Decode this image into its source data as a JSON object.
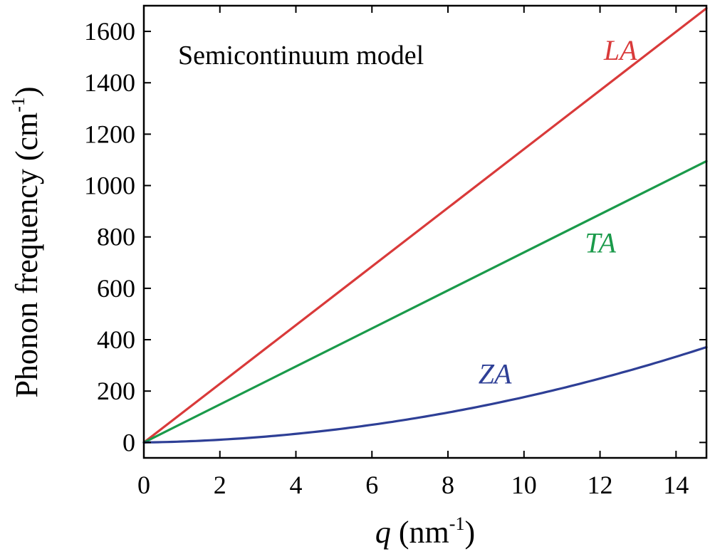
{
  "chart_data": {
    "type": "line",
    "title": "",
    "annotation": "Semicontinuum model",
    "xlabel": {
      "symbol": "q",
      "unit_prefix": " (nm",
      "unit_sup": "-1",
      "unit_suffix": ")"
    },
    "ylabel": {
      "text": "Phonon frequency (cm",
      "sup": "-1",
      "suffix": ")"
    },
    "xlim": [
      0,
      14.8
    ],
    "ylim": [
      -60,
      1700
    ],
    "x_ticks": [
      0,
      2,
      4,
      6,
      8,
      10,
      12,
      14
    ],
    "y_ticks": [
      0,
      200,
      400,
      600,
      800,
      1000,
      1200,
      1400,
      1600
    ],
    "grid": false,
    "legend": "inline labels",
    "series": [
      {
        "name": "LA",
        "color": "#d93a3a",
        "shape": "linear",
        "x": [
          0,
          14.8
        ],
        "y": [
          0,
          1690
        ]
      },
      {
        "name": "TA",
        "color": "#1a9a4a",
        "shape": "linear",
        "x": [
          0,
          14.8
        ],
        "y": [
          0,
          1095
        ]
      },
      {
        "name": "ZA",
        "color": "#2e3f96",
        "shape": "quadratic",
        "x": [
          0,
          2,
          4,
          6,
          8,
          10,
          12,
          14,
          14.8
        ],
        "y": [
          0,
          17,
          40,
          70,
          115,
          170,
          245,
          335,
          375
        ]
      }
    ]
  }
}
